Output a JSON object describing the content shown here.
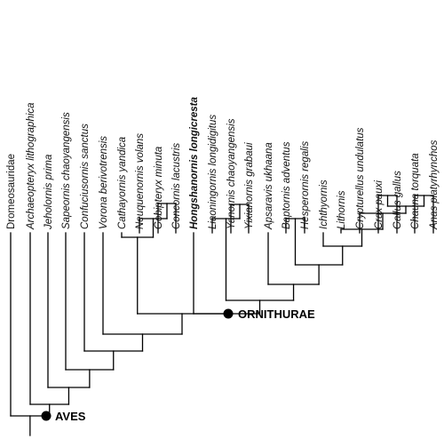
{
  "taxa": [
    {
      "label": "Dromeosauridae",
      "style": "plain"
    },
    {
      "label": "Archaeopteryx lithographica",
      "style": "italic"
    },
    {
      "label": "Jeholornis prima",
      "style": "italic"
    },
    {
      "label": "Sapeornis chaoyangensis",
      "style": "italic"
    },
    {
      "label": "Confuciusornis sanctus",
      "style": "italic"
    },
    {
      "label": "Vorona berivotrensis",
      "style": "italic"
    },
    {
      "label": "Cathayornis yandica",
      "style": "italic"
    },
    {
      "label": "Neuquenornis volans",
      "style": "italic"
    },
    {
      "label": "Gobipteryx minuta",
      "style": "italic"
    },
    {
      "label": "Concornis lacustris",
      "style": "italic"
    },
    {
      "label": "Hongshanornis longicresta",
      "style": "bold"
    },
    {
      "label": "Liaoningornis longidigitus",
      "style": "italic"
    },
    {
      "label": "Yanornis chaoyangensis",
      "style": "italic"
    },
    {
      "label": "Yixianornis grabaui",
      "style": "italic"
    },
    {
      "label": "Apsaravis ukhaana",
      "style": "italic"
    },
    {
      "label": "Baptornis adventus",
      "style": "italic"
    },
    {
      "label": "Hesperornis regalis",
      "style": "italic"
    },
    {
      "label": "Ichthyornis",
      "style": "italic"
    },
    {
      "label": "Lithornis",
      "style": "italic"
    },
    {
      "label": "Crypturellus undulatus",
      "style": "italic"
    },
    {
      "label": "Crax pauxi",
      "style": "italic"
    },
    {
      "label": "Gallus gallus",
      "style": "italic"
    },
    {
      "label": "Chauna torquata",
      "style": "italic"
    },
    {
      "label": "Anas platyrhynchos",
      "style": "italic"
    }
  ],
  "clades": {
    "aves": "AVES",
    "ornithurae": "ORNITHURAE"
  },
  "tree": [
    [
      0,
      [
        1,
        [
          2,
          [
            3,
            [
              4,
              [
                5,
                [
                  [
                    6,
                    [
                      7,
                      [
                        8,
                        9
                      ]
                    ]
                  ],
                  [
                    10,
                    [
                      [
                        11,
                        [
                          12,
                          13
                        ]
                      ],
                      [
                        14,
                        [
                          [
                            15,
                            16
                          ],
                          [
                            17,
                            [
                              18,
                              [
                                19,
                                [
                                  [
                                    20,
                                    21
                                  ],
                                  [
                                    22,
                                    23
                                  ]
                                ]
                              ]
                            ]
                          ]
                        ]
                      ]
                    ]
                  ]
                ]
              ]
            ]
          ]
        ]
      ]
    ],
    null
  ]
}
